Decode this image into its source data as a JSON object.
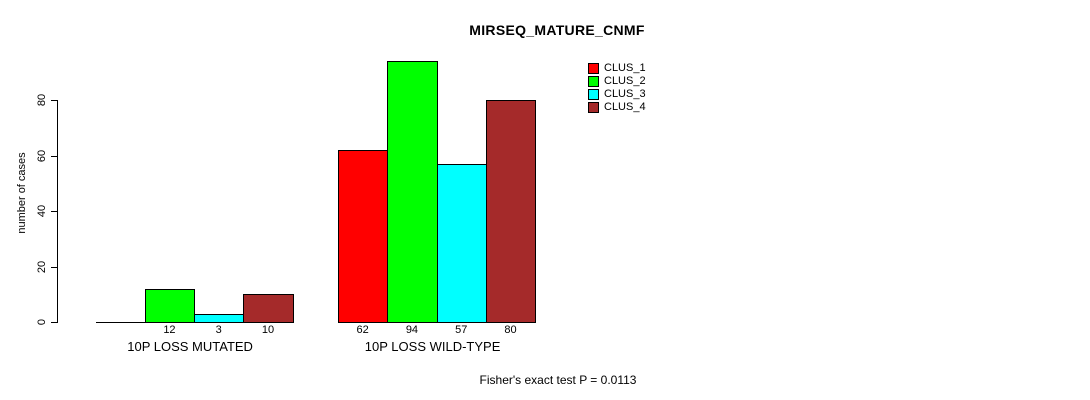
{
  "chart": {
    "title": "MIRSEQ_MATURE_CNMF",
    "y_axis_label": "number of cases",
    "footer": "Fisher's exact test P = 0.0113"
  },
  "chart_data": {
    "type": "bar",
    "title": "MIRSEQ_MATURE_CNMF",
    "xlabel": "",
    "ylabel": "number of cases",
    "categories": [
      "10P LOSS MUTATED",
      "10P LOSS WILD-TYPE"
    ],
    "series": [
      {
        "name": "CLUS_1",
        "color": "#FF0000",
        "values": [
          0,
          62
        ]
      },
      {
        "name": "CLUS_2",
        "color": "#00FF00",
        "values": [
          12,
          94
        ]
      },
      {
        "name": "CLUS_3",
        "color": "#00FFFF",
        "values": [
          3,
          57
        ]
      },
      {
        "name": "CLUS_4",
        "color": "#A52A2A",
        "values": [
          10,
          80
        ]
      }
    ],
    "bar_value_labels": [
      [
        "",
        "12",
        "3",
        "10"
      ],
      [
        "62",
        "94",
        "57",
        "80"
      ]
    ],
    "yticks": [
      0,
      20,
      40,
      60,
      80
    ],
    "ylim": [
      0,
      94
    ],
    "grid": false,
    "legend_position": "top-right",
    "legend_entries": [
      "CLUS_1",
      "CLUS_2",
      "CLUS_3",
      "CLUS_4"
    ],
    "annotation": "Fisher's exact test P = 0.0113",
    "bar_border_color": "#000000"
  }
}
